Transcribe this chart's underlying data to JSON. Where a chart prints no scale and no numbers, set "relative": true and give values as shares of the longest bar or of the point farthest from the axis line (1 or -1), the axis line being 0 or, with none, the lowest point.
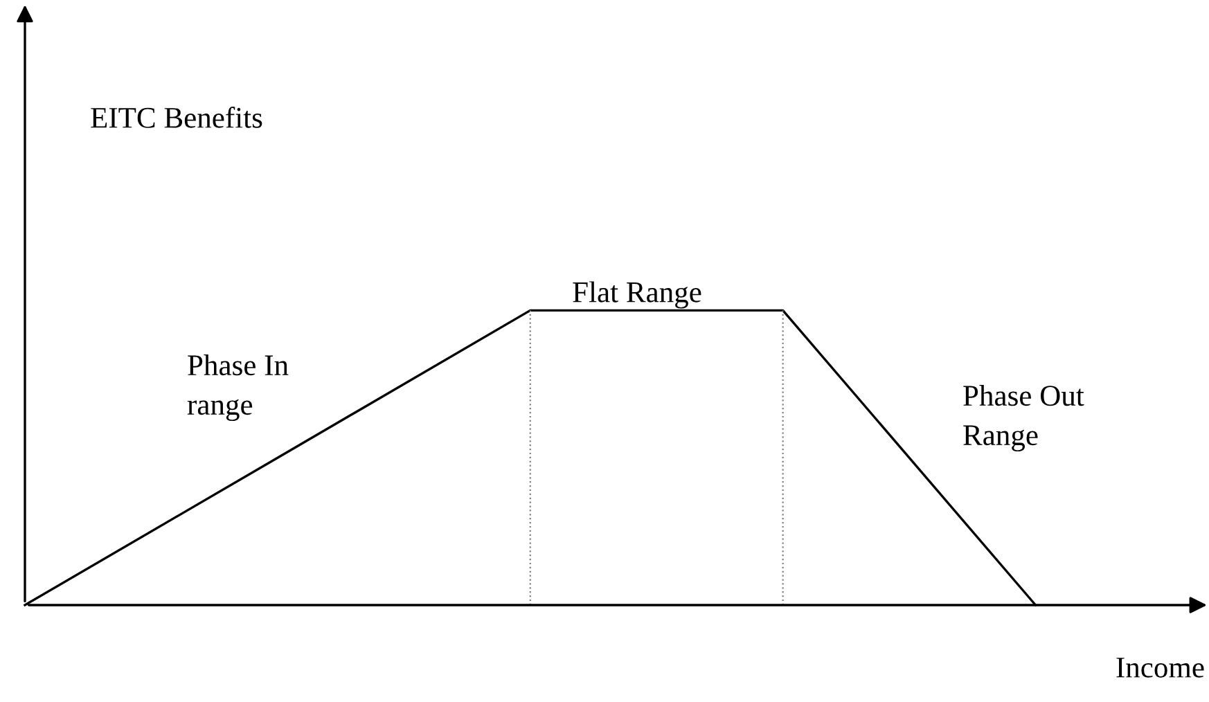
{
  "chart_data": {
    "type": "line",
    "relative": true,
    "categories": [
      null,
      null,
      null,
      null,
      null
    ],
    "series": [
      {
        "color": "#000000",
        "values": [
          0,
          0.5,
          1,
          1,
          0
        ]
      }
    ],
    "xlabel": "Income",
    "annotations": [
      "Phase In\nrange",
      "Flat Range",
      "Phase Out\nRange",
      "EITC Benefits"
    ],
    "marker": "none",
    "line_style": "solid",
    "grid": false,
    "legend": false
  }
}
